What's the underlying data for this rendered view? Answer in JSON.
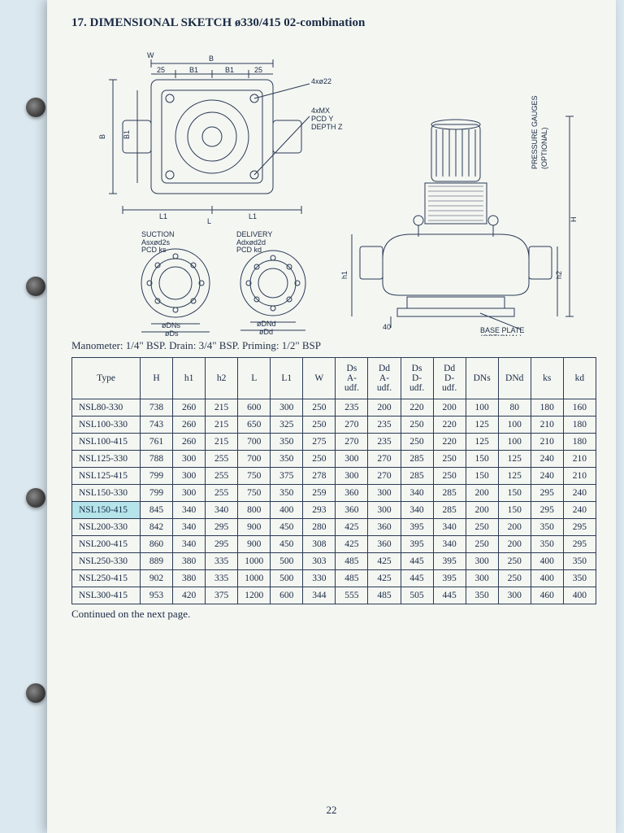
{
  "heading": "17. DIMENSIONAL SKETCH ø330/415 02-combination",
  "note_line": "Manometer: 1/4\" BSP. Drain: 3/4\" BSP. Priming: 1/2\" BSP",
  "continued": "Continued on the next page.",
  "page_number": "22",
  "diagram_labels": {
    "B": "B",
    "W": "W",
    "t25a": "25",
    "B1": "B1",
    "t25b": "25",
    "holes4x22": "4xø22",
    "holes4xMX": "4xMX\nPCD Y\nDEPTH Z",
    "L": "L",
    "L1": "L1",
    "suction": "SUCTION",
    "suction_sub": "Asxød2s\nPCD ks",
    "delivery": "DELIVERY",
    "delivery_sub": "Adxød2d\nPCD kd",
    "DNs": "øDNs",
    "Ds": "øDs",
    "DNd": "øDNd",
    "Dd": "øDd",
    "gauges": "PRESSURE GAUGES\n(OPTIONAL)",
    "H": "H",
    "h1": "h1",
    "h2": "h2",
    "forty": "40",
    "base": "BASE PLATE\n(OPTIONAL)"
  },
  "table": {
    "columns": [
      "Type",
      "H",
      "h1",
      "h2",
      "L",
      "L1",
      "W",
      "Ds\nA-\nudf.",
      "Dd\nA-\nudf.",
      "Ds\nD-\nudf.",
      "Dd\nD-\nudf.",
      "DNs",
      "DNd",
      "ks",
      "kd"
    ],
    "col_widths_pct": [
      13,
      6.2,
      6.2,
      6.2,
      6.2,
      6.2,
      6.2,
      6.2,
      6.2,
      6.2,
      6.2,
      6.2,
      6.2,
      6.2,
      6.2
    ],
    "highlight_row_index": 6,
    "rows": [
      [
        "NSL80-330",
        "738",
        "260",
        "215",
        "600",
        "300",
        "250",
        "235",
        "200",
        "220",
        "200",
        "100",
        "80",
        "180",
        "160"
      ],
      [
        "NSL100-330",
        "743",
        "260",
        "215",
        "650",
        "325",
        "250",
        "270",
        "235",
        "250",
        "220",
        "125",
        "100",
        "210",
        "180"
      ],
      [
        "NSL100-415",
        "761",
        "260",
        "215",
        "700",
        "350",
        "275",
        "270",
        "235",
        "250",
        "220",
        "125",
        "100",
        "210",
        "180"
      ],
      [
        "NSL125-330",
        "788",
        "300",
        "255",
        "700",
        "350",
        "250",
        "300",
        "270",
        "285",
        "250",
        "150",
        "125",
        "240",
        "210"
      ],
      [
        "NSL125-415",
        "799",
        "300",
        "255",
        "750",
        "375",
        "278",
        "300",
        "270",
        "285",
        "250",
        "150",
        "125",
        "240",
        "210"
      ],
      [
        "NSL150-330",
        "799",
        "300",
        "255",
        "750",
        "350",
        "259",
        "360",
        "300",
        "340",
        "285",
        "200",
        "150",
        "295",
        "240"
      ],
      [
        "NSL150-415",
        "845",
        "340",
        "340",
        "800",
        "400",
        "293",
        "360",
        "300",
        "340",
        "285",
        "200",
        "150",
        "295",
        "240"
      ],
      [
        "NSL200-330",
        "842",
        "340",
        "295",
        "900",
        "450",
        "280",
        "425",
        "360",
        "395",
        "340",
        "250",
        "200",
        "350",
        "295"
      ],
      [
        "NSL200-415",
        "860",
        "340",
        "295",
        "900",
        "450",
        "308",
        "425",
        "360",
        "395",
        "340",
        "250",
        "200",
        "350",
        "295"
      ],
      [
        "NSL250-330",
        "889",
        "380",
        "335",
        "1000",
        "500",
        "303",
        "485",
        "425",
        "445",
        "395",
        "300",
        "250",
        "400",
        "350"
      ],
      [
        "NSL250-415",
        "902",
        "380",
        "335",
        "1000",
        "500",
        "330",
        "485",
        "425",
        "445",
        "395",
        "300",
        "250",
        "400",
        "350"
      ],
      [
        "NSL300-415",
        "953",
        "420",
        "375",
        "1200",
        "600",
        "344",
        "555",
        "485",
        "505",
        "445",
        "350",
        "300",
        "460",
        "400"
      ]
    ]
  },
  "colors": {
    "page_bg": "#f4f6f2",
    "outer_bg": "#dce8f0",
    "ink": "#1a2a44",
    "highlight": "#b5e4ea",
    "diagram_stroke": "#2a3a55",
    "diagram_fill": "#f4f6f2"
  }
}
